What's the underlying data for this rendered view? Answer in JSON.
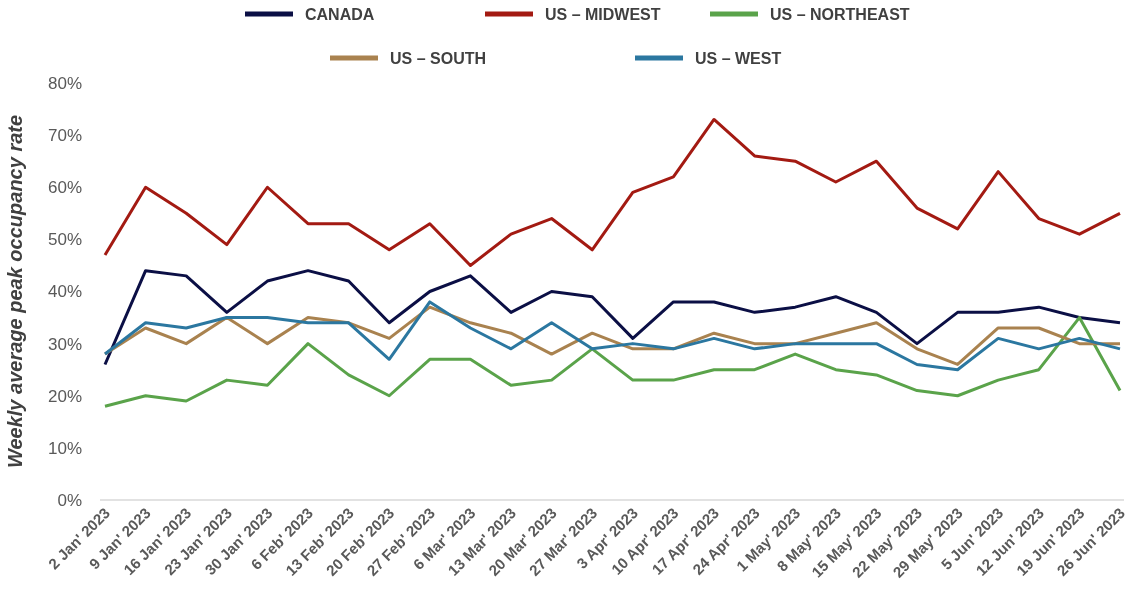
{
  "chart_data": {
    "type": "line",
    "ylabel": "Weekly average peak occupancy rate",
    "categories": [
      "2 Jan' 2023",
      "9 Jan' 2023",
      "16 Jan' 2023",
      "23 Jan' 2023",
      "30 Jan' 2023",
      "6 Feb' 2023",
      "13 Feb' 2023",
      "20 Feb' 2023",
      "27 Feb' 2023",
      "6 Mar' 2023",
      "13 Mar' 2023",
      "20 Mar' 2023",
      "27 Mar' 2023",
      "3 Apr' 2023",
      "10 Apr' 2023",
      "17 Apr' 2023",
      "24 Apr' 2023",
      "1 May' 2023",
      "8 May' 2023",
      "15 May' 2023",
      "22 May' 2023",
      "29 May' 2023",
      "5 Jun' 2023",
      "12 Jun' 2023",
      "19 Jun' 2023",
      "26 Jun' 2023"
    ],
    "series": [
      {
        "name": "CANADA",
        "color": "#0b0f45",
        "values": [
          26,
          44,
          43,
          36,
          42,
          44,
          42,
          34,
          40,
          43,
          36,
          40,
          39,
          31,
          38,
          38,
          36,
          37,
          39,
          36,
          30,
          36,
          36,
          37,
          35,
          34
        ]
      },
      {
        "name": "US – MIDWEST",
        "color": "#a31a12",
        "values": [
          47,
          60,
          55,
          49,
          60,
          53,
          53,
          48,
          53,
          45,
          51,
          54,
          48,
          59,
          62,
          73,
          66,
          65,
          61,
          65,
          56,
          52,
          63,
          54,
          51,
          55
        ]
      },
      {
        "name": "US – NORTHEAST",
        "color": "#5aa34a",
        "values": [
          18,
          20,
          19,
          23,
          22,
          30,
          24,
          20,
          27,
          27,
          22,
          23,
          29,
          23,
          23,
          25,
          25,
          28,
          25,
          24,
          21,
          20,
          23,
          25,
          35,
          21
        ]
      },
      {
        "name": "US – SOUTH",
        "color": "#a9824f",
        "values": [
          28,
          33,
          30,
          35,
          30,
          35,
          34,
          31,
          37,
          34,
          32,
          28,
          32,
          29,
          29,
          32,
          30,
          30,
          32,
          34,
          29,
          26,
          33,
          33,
          30,
          30
        ]
      },
      {
        "name": "US – WEST",
        "color": "#2b77a0",
        "values": [
          28,
          34,
          33,
          35,
          35,
          34,
          34,
          27,
          38,
          33,
          29,
          34,
          29,
          30,
          29,
          31,
          29,
          30,
          30,
          30,
          26,
          25,
          31,
          29,
          31,
          29
        ]
      }
    ],
    "ylim": [
      0,
      80
    ],
    "yticks": [
      {
        "value": 0,
        "label": "0%"
      },
      {
        "value": 10,
        "label": "10%"
      },
      {
        "value": 20,
        "label": "20%"
      },
      {
        "value": 30,
        "label": "30%"
      },
      {
        "value": 40,
        "label": "40%"
      },
      {
        "value": 50,
        "label": "50%"
      },
      {
        "value": 60,
        "label": "60%"
      },
      {
        "value": 70,
        "label": "70%"
      },
      {
        "value": 80,
        "label": "80%"
      }
    ],
    "grid": false,
    "legend": "top",
    "marker": "none",
    "line_style": "solid"
  }
}
